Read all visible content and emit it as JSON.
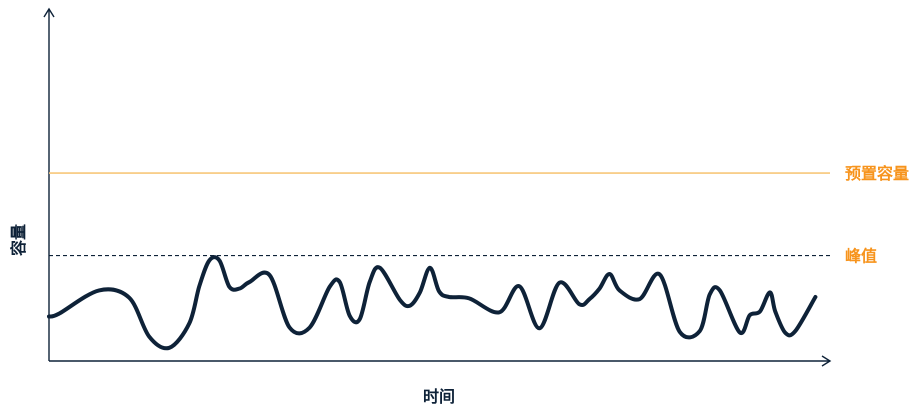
{
  "chart_data": {
    "type": "line",
    "title": "",
    "xlabel": "时间",
    "ylabel": "容量",
    "xlim": [
      0,
      100
    ],
    "ylim": [
      0,
      100
    ],
    "grid": false,
    "reference_lines": [
      {
        "label": "预置容量",
        "value": 54.0,
        "style": "solid",
        "color": "#f7c77a",
        "label_color": "#f7941d"
      },
      {
        "label": "峰值",
        "value": 30.3,
        "style": "dashed",
        "color": "#0e2238",
        "label_color": "#f7941d"
      }
    ],
    "series": [
      {
        "color": "#0e2238",
        "x": [
          0,
          1.3,
          6.5,
          10.4,
          13.0,
          15.6,
          18.2,
          19.5,
          20.8,
          22.1,
          23.4,
          24.7,
          26.0,
          28.6,
          31.2,
          33.8,
          36.4,
          37.7,
          39.0,
          40.3,
          41.6,
          42.9,
          45.5,
          46.8,
          48.1,
          49.4,
          50.6,
          51.9,
          54.5,
          58.4,
          61.0,
          63.6,
          66.2,
          68.8,
          70.1,
          71.4,
          72.7,
          74.0,
          76.6,
          79.2,
          81.8,
          84.4,
          85.7,
          87.0,
          89.6,
          90.9,
          92.2,
          93.5,
          94.2,
          95.5,
          96.8,
          99.4
        ],
        "y": [
          12.8,
          13.6,
          20.3,
          18.2,
          7.0,
          3.8,
          10.8,
          21.5,
          28.9,
          28.9,
          21.3,
          20.8,
          22.7,
          24.7,
          9.6,
          9.6,
          21.3,
          22.7,
          13.0,
          12.0,
          22.7,
          26.8,
          17.6,
          15.9,
          19.7,
          26.8,
          20.0,
          18.4,
          18.0,
          14.0,
          21.5,
          9.4,
          22.5,
          16.3,
          17.8,
          20.8,
          25.0,
          20.3,
          17.8,
          24.9,
          8.4,
          8.6,
          19.1,
          20.3,
          8.2,
          13.2,
          14.2,
          19.7,
          14.2,
          8.1,
          8.6,
          18.4
        ]
      }
    ]
  }
}
